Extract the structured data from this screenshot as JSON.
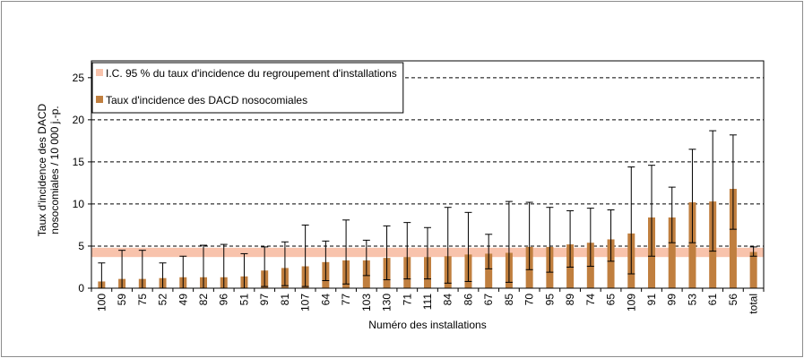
{
  "chart_data": {
    "type": "bar",
    "categories": [
      "100",
      "59",
      "75",
      "52",
      "49",
      "82",
      "96",
      "51",
      "97",
      "81",
      "107",
      "64",
      "77",
      "103",
      "130",
      "71",
      "111",
      "84",
      "86",
      "67",
      "85",
      "70",
      "95",
      "89",
      "74",
      "65",
      "109",
      "91",
      "99",
      "53",
      "61",
      "56",
      "total"
    ],
    "series": [
      {
        "name": "Taux d'incidence des DACD nosocomiales",
        "values": [
          0.8,
          1.1,
          1.1,
          1.2,
          1.3,
          1.3,
          1.3,
          1.4,
          2.1,
          2.4,
          2.6,
          3.1,
          3.3,
          3.3,
          3.6,
          3.7,
          3.7,
          3.8,
          4.0,
          4.1,
          4.2,
          4.9,
          4.9,
          5.2,
          5.4,
          5.8,
          6.5,
          8.4,
          8.4,
          10.2,
          10.3,
          11.8,
          4.3
        ],
        "error_low": [
          0.0,
          0.0,
          0.0,
          0.0,
          0.0,
          0.0,
          0.0,
          0.0,
          0.2,
          0.3,
          0.2,
          0.9,
          0.5,
          1.5,
          1.0,
          1.1,
          1.1,
          0.6,
          0.8,
          2.3,
          0.7,
          2.2,
          1.9,
          2.5,
          2.6,
          3.2,
          1.7,
          3.8,
          5.4,
          5.4,
          4.4,
          7.0,
          3.8
        ],
        "error_high": [
          3.0,
          4.5,
          4.5,
          3.0,
          3.8,
          5.1,
          5.2,
          4.1,
          4.9,
          5.5,
          7.5,
          5.6,
          8.1,
          5.7,
          7.4,
          7.8,
          7.2,
          9.6,
          9.0,
          6.4,
          10.3,
          10.2,
          9.6,
          9.2,
          9.5,
          9.3,
          14.4,
          14.6,
          12.0,
          16.5,
          18.7,
          18.2,
          4.9
        ]
      }
    ],
    "ci_band": {
      "name": "I.C. 95 % du taux d'incidence du regroupement d'installations",
      "low": 3.7,
      "high": 4.8
    },
    "xlabel": "Numéro des installations",
    "ylabel_line1": "Taux d'incidence des DACD",
    "ylabel_line2": "nosocomiales / 10 000 j.-p.",
    "ylim": [
      0,
      27
    ],
    "yticks": [
      0,
      5,
      10,
      15,
      20,
      25
    ],
    "grid": "horizontal dashed",
    "legend_position": "top-left",
    "colors": {
      "bar": "#c07f3f",
      "band": "#f8c3ac",
      "error": "#000000",
      "grid": "#000000"
    }
  }
}
